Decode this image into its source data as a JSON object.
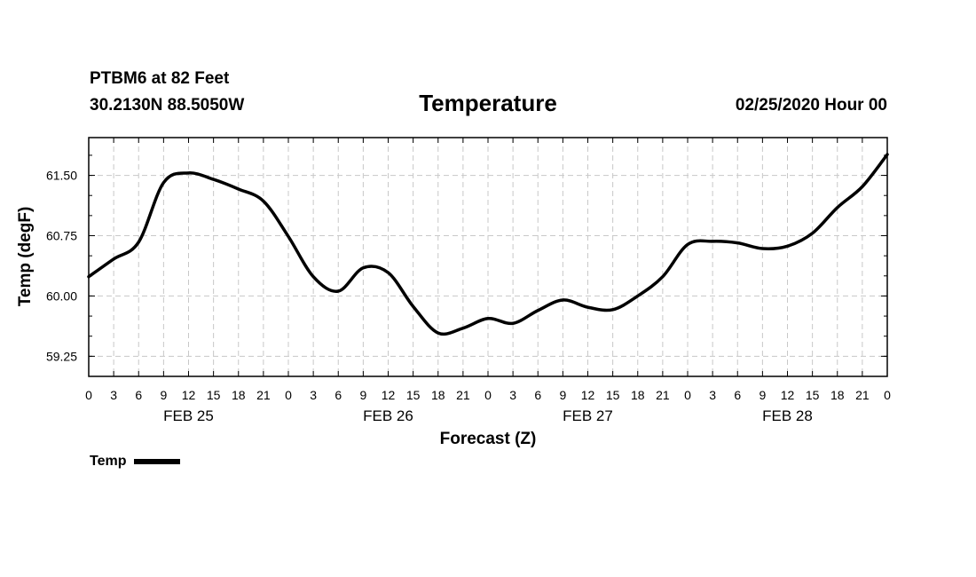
{
  "header": {
    "station": "PTBM6 at 82 Feet",
    "coords": "30.2130N 88.5050W",
    "datetime": "02/25/2020 Hour 00"
  },
  "chart_data": {
    "type": "line",
    "title": "Temperature",
    "xlabel": "Forecast (Z)",
    "ylabel": "Temp (degF)",
    "x_unit": "forecast hour",
    "xlim": [
      0,
      96
    ],
    "ylim": [
      59.0,
      61.97
    ],
    "yticks": [
      59.25,
      60.0,
      60.75,
      61.5
    ],
    "ytick_labels": [
      "59.25",
      "60.00",
      "60.75",
      "61.50"
    ],
    "xticks": [
      0,
      3,
      6,
      9,
      12,
      15,
      18,
      21,
      24,
      27,
      30,
      33,
      36,
      39,
      42,
      45,
      48,
      51,
      54,
      57,
      60,
      63,
      66,
      69,
      72,
      75,
      78,
      81,
      84,
      87,
      90,
      93,
      96
    ],
    "xtick_labels": [
      "0",
      "3",
      "6",
      "9",
      "12",
      "15",
      "18",
      "21",
      "0",
      "3",
      "6",
      "9",
      "12",
      "15",
      "18",
      "21",
      "0",
      "3",
      "6",
      "9",
      "12",
      "15",
      "18",
      "21",
      "0",
      "3",
      "6",
      "9",
      "12",
      "15",
      "18",
      "21",
      "0"
    ],
    "day_labels": [
      {
        "x": 12,
        "label": "FEB 25"
      },
      {
        "x": 36,
        "label": "FEB 26"
      },
      {
        "x": 60,
        "label": "FEB 27"
      },
      {
        "x": 84,
        "label": "FEB 28"
      }
    ],
    "grid": true,
    "legend": "bottom-left",
    "series": [
      {
        "name": "Temp",
        "color": "#000000",
        "x": [
          0,
          3,
          6,
          9,
          12,
          15,
          18,
          21,
          24,
          27,
          30,
          33,
          36,
          39,
          42,
          45,
          48,
          51,
          54,
          57,
          60,
          63,
          66,
          69,
          72,
          75,
          78,
          81,
          84,
          87,
          90,
          93,
          96
        ],
        "y": [
          60.24,
          60.46,
          60.67,
          61.41,
          61.53,
          61.45,
          61.33,
          61.18,
          60.74,
          60.24,
          60.06,
          60.35,
          60.29,
          59.87,
          59.54,
          59.6,
          59.72,
          59.66,
          59.82,
          59.95,
          59.86,
          59.83,
          60.0,
          60.24,
          60.64,
          60.68,
          60.66,
          60.59,
          60.62,
          60.78,
          61.1,
          61.36,
          61.76
        ]
      }
    ]
  }
}
